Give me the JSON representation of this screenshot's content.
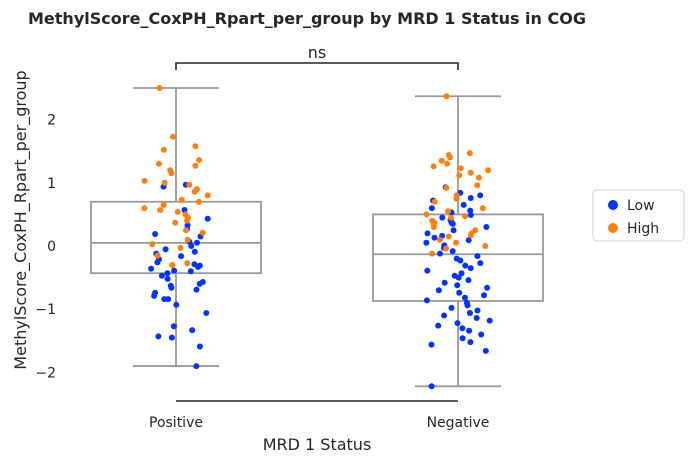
{
  "chart_data": {
    "type": "box-strip",
    "title": "MethylScore_CoxPH_Rpart_per_group by MRD 1 Status in COG",
    "xlabel": "MRD 1 Status",
    "ylabel": "MethylScore_CoxPH_Rpart_per_group",
    "categories": [
      "Positive",
      "Negative"
    ],
    "yticks": [
      -2,
      -1,
      0,
      1,
      2
    ],
    "ylim": [
      -2.45,
      2.6
    ],
    "significance": {
      "groups": [
        "Positive",
        "Negative"
      ],
      "label": "ns"
    },
    "legend": {
      "position": "right",
      "entries": [
        {
          "name": "Low",
          "color": "#0033ff"
        },
        {
          "name": "High",
          "color": "#ff7f0e"
        }
      ]
    },
    "boxes": [
      {
        "category": "Positive",
        "whisker_low": -1.9,
        "q1": -0.43,
        "median": 0.05,
        "q3": 0.7,
        "whisker_high": 2.5
      },
      {
        "category": "Negative",
        "whisker_low": -2.22,
        "q1": -0.87,
        "median": -0.13,
        "q3": 0.5,
        "whisker_high": 2.37
      }
    ],
    "series": [
      {
        "name": "Low",
        "color": "#0033ff",
        "points": {
          "Positive": [
            0.97,
            0.94,
            0.57,
            0.43,
            0.33,
            0.27,
            0.19,
            0.15,
            0.07,
            0.05,
            0.0,
            -0.05,
            -0.09,
            -0.12,
            -0.16,
            -0.21,
            -0.26,
            -0.29,
            -0.31,
            -0.33,
            -0.36,
            -0.39,
            -0.4,
            -0.43,
            -0.47,
            -0.52,
            -0.57,
            -0.6,
            -0.63,
            -0.66,
            -0.69,
            -0.74,
            -0.79,
            -0.84,
            -0.84,
            -0.93,
            -1.06,
            -1.27,
            -1.33,
            -1.43,
            -1.45,
            -1.59,
            -1.9
          ],
          "Negative": [
            0.93,
            0.84,
            0.8,
            0.76,
            0.72,
            0.65,
            0.6,
            0.56,
            0.53,
            0.49,
            0.45,
            0.41,
            0.37,
            0.35,
            0.3,
            0.25,
            0.2,
            0.16,
            0.13,
            0.09,
            0.05,
            0.01,
            -0.03,
            -0.08,
            -0.12,
            -0.16,
            -0.2,
            -0.23,
            -0.27,
            -0.31,
            -0.35,
            -0.39,
            -0.43,
            -0.47,
            -0.5,
            -0.54,
            -0.58,
            -0.62,
            -0.66,
            -0.7,
            -0.74,
            -0.78,
            -0.82,
            -0.86,
            -0.9,
            -0.94,
            -0.98,
            -1.02,
            -1.06,
            -1.1,
            -1.14,
            -1.18,
            -1.22,
            -1.26,
            -1.3,
            -1.34,
            -1.4,
            -1.46,
            -1.52,
            -1.56,
            -1.66,
            -2.22
          ]
        }
      },
      {
        "name": "High",
        "color": "#ff7f0e",
        "points": {
          "Positive": [
            2.5,
            1.73,
            1.58,
            1.52,
            1.36,
            1.3,
            1.27,
            1.2,
            1.15,
            1.03,
            1.0,
            0.97,
            0.9,
            0.86,
            0.8,
            0.73,
            0.7,
            0.65,
            0.6,
            0.57,
            0.54,
            0.5,
            0.45,
            0.4,
            0.37,
            0.25,
            0.21,
            0.1,
            0.03,
            -0.03,
            -0.15,
            -0.27,
            -0.3
          ],
          "Negative": [
            2.37,
            1.47,
            1.44,
            1.4,
            1.35,
            1.3,
            1.26,
            1.23,
            1.2,
            1.16,
            1.12,
            1.08,
            0.96,
            0.92,
            0.8,
            0.75,
            0.7,
            0.6,
            0.55,
            0.5,
            0.47,
            0.45,
            0.4,
            0.37,
            0.33,
            0.3,
            0.25,
            0.2,
            0.17,
            0.15,
            0.1,
            0.05,
            0.0,
            -0.04,
            -0.12
          ]
        }
      }
    ]
  }
}
